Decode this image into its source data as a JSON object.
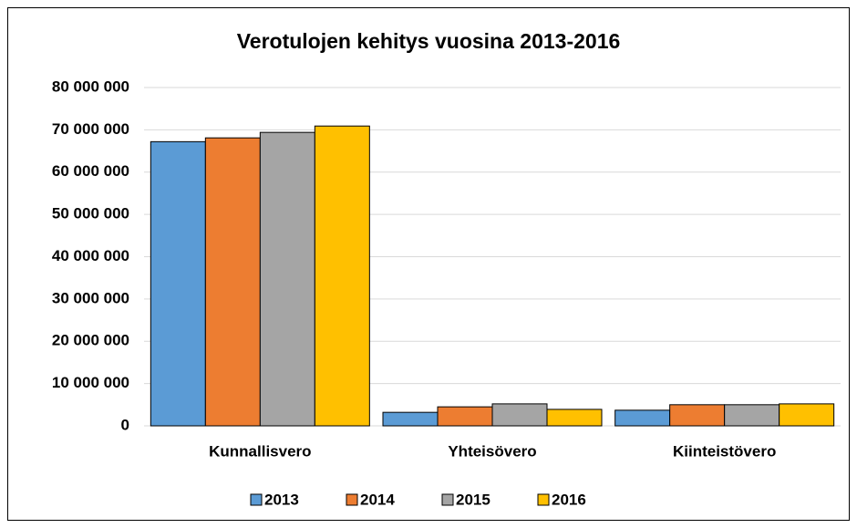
{
  "chart_data": {
    "type": "bar",
    "title": "Verotulojen kehitys vuosina 2013-2016",
    "categories": [
      "Kunnallisvero",
      "Yhteisövero",
      "Kiinteistövero"
    ],
    "series": [
      {
        "name": "2013",
        "color": "#5b9bd5",
        "values": [
          67200000,
          3200000,
          3700000
        ]
      },
      {
        "name": "2014",
        "color": "#ed7d31",
        "values": [
          68100000,
          4500000,
          5000000
        ]
      },
      {
        "name": "2015",
        "color": "#a5a5a5",
        "values": [
          69400000,
          5200000,
          5000000
        ]
      },
      {
        "name": "2016",
        "color": "#ffc000",
        "values": [
          70900000,
          3900000,
          5200000
        ]
      }
    ],
    "ylim": [
      0,
      80000000
    ],
    "yticks": [
      0,
      {
        "value": 10000000,
        "label": "10 000 000"
      },
      {
        "value": 20000000,
        "label": "20 000 000"
      },
      {
        "value": 30000000,
        "label": "30 000 000"
      },
      {
        "value": 40000000,
        "label": "40 000 000"
      },
      {
        "value": 50000000,
        "label": "50 000 000"
      },
      {
        "value": 60000000,
        "label": "60 000 000"
      },
      {
        "value": 70000000,
        "label": "70 000 000"
      },
      {
        "value": 80000000,
        "label": "80 000 000"
      }
    ],
    "grid": true,
    "legend": "bottom"
  }
}
